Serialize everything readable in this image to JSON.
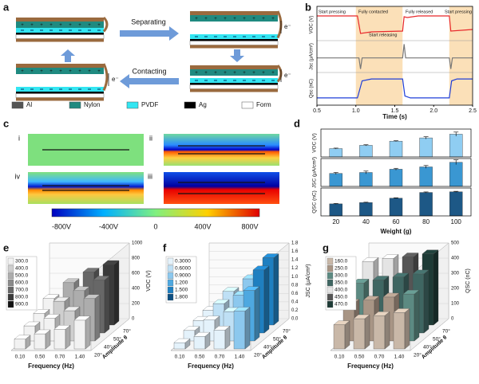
{
  "figure_labels": [
    "a",
    "b",
    "c",
    "d",
    "e",
    "f",
    "g"
  ],
  "schematic": {
    "steps": [
      "Separating",
      "Contacting"
    ],
    "electron": "e⁻",
    "legend": [
      {
        "name": "Al",
        "color": "#555555"
      },
      {
        "name": "Nylon",
        "color": "#1f8a80"
      },
      {
        "name": "PVDF",
        "color": "#33e6f2"
      },
      {
        "name": "Ag",
        "color": "#000000"
      },
      {
        "name": "Form",
        "color": "#ffffff"
      }
    ]
  },
  "simulation": {
    "states": [
      "i",
      "ii",
      "iv",
      "iii"
    ],
    "colorbar_ticks": [
      "-800V",
      "-400V",
      "0",
      "400V",
      "800V"
    ]
  },
  "chart_data": [
    {
      "type": "line",
      "x_label": "Time (s)",
      "xlim": [
        0.5,
        2.5
      ],
      "xticks": [
        0.5,
        {
          "value": 1,
          "label": "1.0"
        },
        1.5,
        {
          "value": 2,
          "label": "2.0"
        },
        2.5
      ],
      "shaded": [
        [
          1.0,
          1.6
        ],
        [
          2.2,
          2.5
        ]
      ],
      "annotations": [
        "Start pressing",
        "Fully contacted",
        "Fully released",
        "Start pressing",
        "Start releasing"
      ],
      "series": [
        {
          "y_label": "VOC (V)",
          "color": "#e8282b",
          "ylim": [
            -0.5,
            1.4
          ],
          "x": [
            0.5,
            1.02,
            1.06,
            1.2,
            1.6,
            1.62,
            1.66,
            1.8,
            2.2,
            2.22,
            2.5
          ],
          "values": [
            1,
            1,
            -0.1,
            0,
            0.05,
            0.95,
            0.9,
            1,
            1,
            0.05,
            0.15
          ]
        },
        {
          "y_label": "Jsc (μA/cm²)",
          "color": "#777777",
          "ylim": [
            -1,
            1.2
          ],
          "x": [
            0.5,
            1.04,
            1.06,
            1.08,
            1.6,
            1.62,
            1.64,
            2.2,
            2.22,
            2.24,
            2.5
          ],
          "values": [
            0,
            0,
            -0.8,
            0,
            0,
            1,
            0,
            0,
            -0.8,
            0,
            0
          ]
        },
        {
          "y_label": "Qsc (nC)",
          "color": "#1f3fd8",
          "ylim": [
            -0.3,
            1.3
          ],
          "x": [
            0.5,
            1.02,
            1.08,
            1.2,
            1.6,
            1.63,
            1.7,
            2.2,
            2.23,
            2.3,
            2.5
          ],
          "values": [
            0,
            0,
            0.9,
            1,
            1,
            0.1,
            0,
            0,
            0.9,
            1,
            1
          ]
        }
      ]
    },
    {
      "type": "bar",
      "x_label": "Weight (g)",
      "categories": [
        "20",
        "40",
        "60",
        "80",
        "100"
      ],
      "panels": [
        {
          "y_label": "VOC (V)",
          "color": "#8fcdf2",
          "ylim": [
            0,
            600
          ],
          "values": [
            180,
            250,
            340,
            410,
            490
          ],
          "errors": [
            10,
            12,
            10,
            25,
            45
          ]
        },
        {
          "y_label": "JSC (μA/cm²)",
          "color": "#3a97d2",
          "ylim": [
            0,
            0.6
          ],
          "values": [
            0.28,
            0.3,
            0.37,
            0.42,
            0.52
          ],
          "errors": [
            0.02,
            0.03,
            0.02,
            0.03,
            0.05
          ]
        },
        {
          "y_label": "QSC (nC)",
          "color": "#1d5886",
          "ylim": [
            0,
            220
          ],
          "values": [
            95,
            105,
            140,
            185,
            190
          ],
          "errors": [
            3,
            3,
            3,
            4,
            4
          ]
        }
      ]
    },
    {
      "type": "bar3d",
      "x_label": "Frequency (Hz)",
      "y_label": "Amplitude θ",
      "z_label": "VOC (V)",
      "categories": [
        "0.10",
        "0.50",
        "0.70",
        "1.40"
      ],
      "depth_categories": [
        "20°",
        "40°",
        "50°",
        "70°"
      ],
      "zlim": [
        0,
        1000
      ],
      "zticks": [
        0,
        200,
        400,
        600,
        800,
        1000
      ],
      "legend": [
        {
          "value": 300,
          "label": "300.0",
          "color": "#f2f2f2"
        },
        {
          "value": 400,
          "label": "400.0",
          "color": "#cfcfcf"
        },
        {
          "value": 500,
          "label": "500.0",
          "color": "#adadad"
        },
        {
          "value": 600,
          "label": "600.0",
          "color": "#8a8a8a"
        },
        {
          "value": 700,
          "label": "700.0",
          "color": "#676767"
        },
        {
          "value": 800,
          "label": "800.0",
          "color": "#3a3a3a"
        },
        {
          "value": 900,
          "label": "900.0",
          "color": "#111111"
        }
      ],
      "values": [
        [
          130,
          200,
          260,
          380
        ],
        [
          200,
          300,
          400,
          560
        ],
        [
          260,
          420,
          560,
          700
        ],
        [
          350,
          560,
          700,
          800
        ]
      ]
    },
    {
      "type": "bar3d",
      "x_label": "Frequency (Hz)",
      "y_label": "Amplitude θ",
      "z_label": "JSC (μA/cm²)",
      "categories": [
        "0.10",
        "0.50",
        "0.70",
        "1.40"
      ],
      "depth_categories": [
        "20°",
        "40°",
        "50°",
        "70°"
      ],
      "zlim": [
        0,
        1.8
      ],
      "zticks": [
        {
          "value": 0,
          "label": "0.0"
        },
        0.2,
        0.4,
        0.6,
        0.8,
        {
          "value": 1,
          "label": "1.0"
        },
        1.2,
        1.4,
        1.6,
        1.8
      ],
      "legend": [
        {
          "value": 0.3,
          "label": "0.3000",
          "color": "#e4f2fb"
        },
        {
          "value": 0.6,
          "label": "0.6000",
          "color": "#bfe0f5"
        },
        {
          "value": 0.9,
          "label": "0.9000",
          "color": "#8cc8ee"
        },
        {
          "value": 1.2,
          "label": "1.200",
          "color": "#4ea8e0"
        },
        {
          "value": 1.5,
          "label": "1.500",
          "color": "#1f7fc0"
        },
        {
          "value": 1.8,
          "label": "1.800",
          "color": "#0d4f82"
        }
      ],
      "values": [
        [
          0.15,
          0.3,
          0.45,
          0.9
        ],
        [
          0.25,
          0.5,
          0.7,
          1.2
        ],
        [
          0.3,
          0.7,
          0.9,
          1.5
        ],
        [
          0.35,
          0.8,
          1.1,
          1.6
        ]
      ]
    },
    {
      "type": "bar3d",
      "x_label": "Frequency (Hz)",
      "y_label": "Amplitude θ",
      "z_label": "QSC (nC)",
      "categories": [
        "0.10",
        "0.50",
        "0.70",
        "1.40"
      ],
      "depth_categories": [
        "20°",
        "40°",
        "50°",
        "70°"
      ],
      "zlim": [
        0,
        500
      ],
      "zticks": [
        0,
        100,
        200,
        300,
        400,
        500
      ],
      "legend": [
        {
          "value": 160,
          "label": "160.0",
          "color": "#c9b8a8"
        },
        {
          "value": 250,
          "label": "250.0",
          "color": "#a89585"
        },
        {
          "value": 300,
          "label": "300.0",
          "color": "#5c8a82"
        },
        {
          "value": 350,
          "label": "350.0",
          "color": "#3f6662"
        },
        {
          "value": 400,
          "label": "400.0",
          "color": "#e4e4e4"
        },
        {
          "value": 450,
          "label": "450.0",
          "color": "#555555"
        },
        {
          "value": 470,
          "label": "470.0",
          "color": "#1e3b36"
        }
      ],
      "values": [
        [
          160,
          200,
          220,
          240
        ],
        [
          250,
          270,
          290,
          310
        ],
        [
          330,
          350,
          370,
          390
        ],
        [
          420,
          440,
          450,
          470
        ]
      ]
    }
  ]
}
